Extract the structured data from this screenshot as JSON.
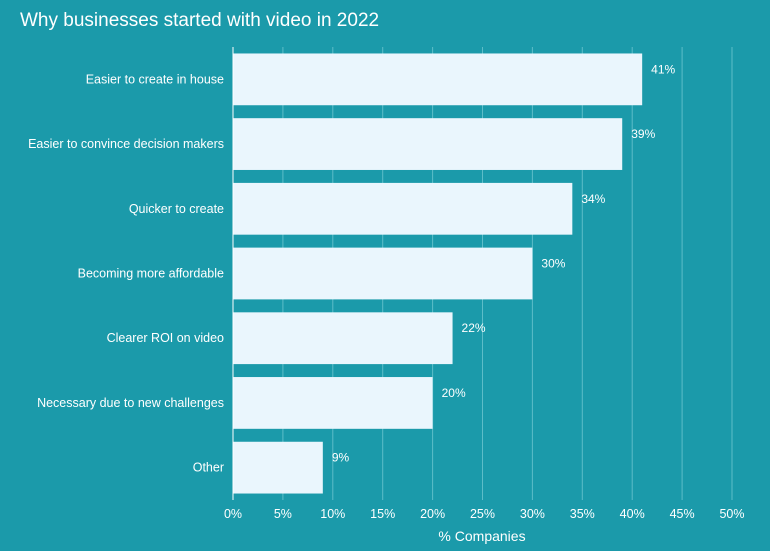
{
  "chart_data": {
    "type": "bar",
    "orientation": "horizontal",
    "title": "Why businesses started with video in 2022",
    "xlabel": "% Companies",
    "ylabel": "",
    "categories": [
      "Easier to create in house",
      "Easier to convince decision makers",
      "Quicker to create",
      "Becoming more affordable",
      "Clearer ROI on video",
      "Necessary due to new challenges",
      "Other"
    ],
    "values": [
      41,
      39,
      34,
      30,
      22,
      20,
      9
    ],
    "data_labels": [
      "41%",
      "39%",
      "34%",
      "30%",
      "22%",
      "20%",
      "9%"
    ],
    "xlim": [
      0,
      50
    ],
    "xticks": [
      "0%",
      "5%",
      "10%",
      "15%",
      "20%",
      "25%",
      "30%",
      "35%",
      "40%",
      "45%",
      "50%"
    ],
    "grid": true,
    "legend": "none"
  },
  "colors": {
    "background": "#1b9aaa",
    "bar": "#eaf6fd",
    "grid": "#5dbdc8",
    "text": "#ffffff"
  }
}
